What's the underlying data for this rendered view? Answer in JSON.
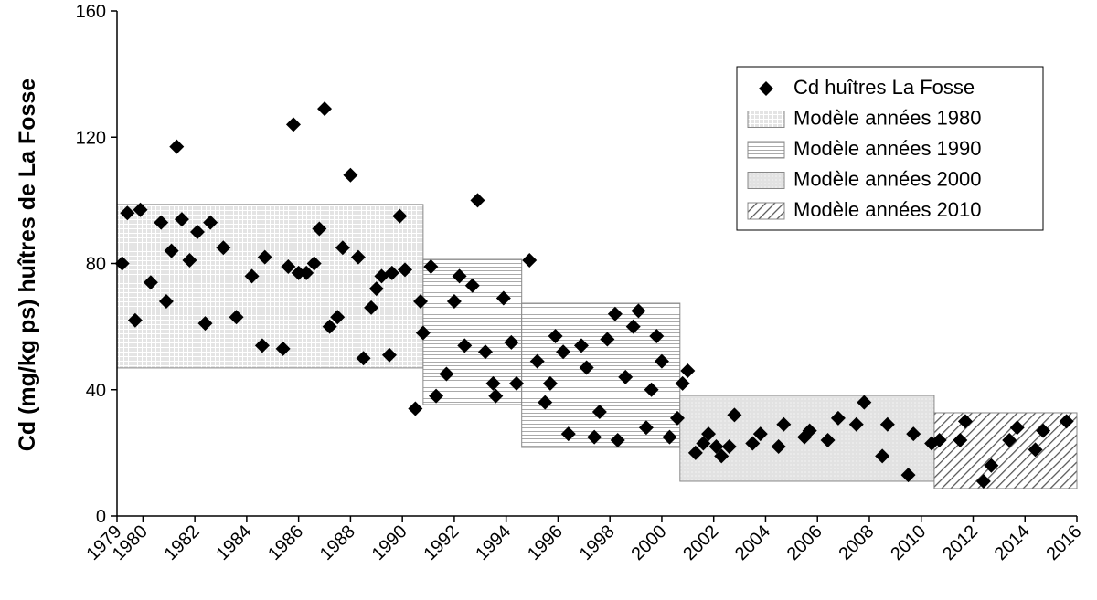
{
  "chart_data": {
    "type": "scatter",
    "ylabel": "Cd (mg/kg ps) huîtres de La Fosse",
    "xlim": [
      1979,
      2016
    ],
    "xticks": [
      1979,
      1980,
      1982,
      1984,
      1986,
      1988,
      1990,
      1992,
      1994,
      1996,
      1998,
      2000,
      2002,
      2004,
      2006,
      2008,
      2010,
      2012,
      2014,
      2016
    ],
    "ylim": [
      0,
      160
    ],
    "yticks": [
      0,
      40,
      80,
      120,
      160
    ],
    "legend": "upper right",
    "series": [
      {
        "name": "Cd huîtres La Fosse",
        "color": "#000000",
        "x": [
          1979.2,
          1979.4,
          1979.9,
          1979.7,
          1980.3,
          1980.7,
          1980.9,
          1981.1,
          1981.3,
          1981.5,
          1981.8,
          1982.1,
          1982.4,
          1982.6,
          1983.1,
          1983.6,
          1984.2,
          1984.6,
          1984.7,
          1985.4,
          1985.6,
          1985.8,
          1986.0,
          1986.3,
          1986.6,
          1986.8,
          1987.0,
          1987.2,
          1987.5,
          1987.7,
          1988.0,
          1988.3,
          1988.5,
          1988.8,
          1989.0,
          1989.2,
          1989.5,
          1989.6,
          1989.9,
          1990.1,
          1990.5,
          1990.7,
          1990.8,
          1991.1,
          1991.3,
          1991.7,
          1992.0,
          1992.2,
          1992.4,
          1992.7,
          1992.9,
          1993.2,
          1993.5,
          1993.6,
          1993.9,
          1994.2,
          1994.4,
          1994.9,
          1995.2,
          1995.5,
          1995.7,
          1995.9,
          1996.2,
          1996.4,
          1996.9,
          1997.1,
          1997.4,
          1997.6,
          1997.9,
          1998.2,
          1998.3,
          1998.6,
          1998.9,
          1999.1,
          1999.4,
          1999.6,
          1999.8,
          2000.0,
          2000.3,
          2000.6,
          2000.8,
          2001.0,
          2001.3,
          2001.6,
          2001.8,
          2002.1,
          2002.3,
          2002.6,
          2002.8,
          2003.5,
          2003.8,
          2004.5,
          2004.7,
          2005.5,
          2005.7,
          2006.4,
          2006.8,
          2007.5,
          2007.8,
          2008.5,
          2008.7,
          2009.5,
          2009.7,
          2010.4,
          2010.7,
          2011.5,
          2011.7,
          2012.4,
          2012.7,
          2013.4,
          2013.7,
          2014.4,
          2014.7,
          2015.6
        ],
        "values": [
          80,
          96,
          97,
          62,
          74,
          93,
          68,
          84,
          117,
          94,
          81,
          90,
          61,
          93,
          85,
          63,
          76,
          54,
          82,
          53,
          79,
          124,
          77,
          77,
          80,
          91,
          129,
          60,
          63,
          85,
          108,
          82,
          50,
          66,
          72,
          76,
          51,
          77,
          95,
          78,
          34,
          68,
          58,
          79,
          38,
          45,
          68,
          76,
          54,
          73,
          100,
          52,
          42,
          38,
          69,
          55,
          42,
          81,
          49,
          36,
          42,
          57,
          52,
          26,
          54,
          47,
          25,
          33,
          56,
          64,
          24,
          44,
          60,
          65,
          28,
          40,
          57,
          49,
          25,
          31,
          42,
          46,
          20,
          23,
          26,
          22,
          19,
          22,
          32,
          23,
          26,
          22,
          29,
          25,
          27,
          24,
          31,
          29,
          36,
          19,
          29,
          13,
          26,
          23,
          24,
          24,
          30,
          11,
          16,
          24,
          28,
          21,
          27,
          30
        ]
      }
    ],
    "models": [
      {
        "name": "Modèle années 1980",
        "pattern": "grid",
        "boxes": [
          {
            "x": [
              1979,
              1990.8
            ],
            "y": [
              46.9,
              98.7
            ]
          }
        ]
      },
      {
        "name": "Modèle années 1990",
        "pattern": "hlines",
        "boxes": [
          {
            "x": [
              1990.8,
              1994.6
            ],
            "y": [
              35.3,
              81.3
            ]
          },
          {
            "x": [
              1994.6,
              2000.7
            ],
            "y": [
              21.7,
              67.4
            ]
          }
        ]
      },
      {
        "name": "Modèle années 2000",
        "pattern": "dots",
        "boxes": [
          {
            "x": [
              2000.7,
              2010.5
            ],
            "y": [
              11,
              38.2
            ]
          }
        ]
      },
      {
        "name": "Modèle années 2010",
        "pattern": "hatch",
        "boxes": [
          {
            "x": [
              2010.5,
              2016
            ],
            "y": [
              8.7,
              32.7
            ]
          }
        ]
      }
    ]
  }
}
